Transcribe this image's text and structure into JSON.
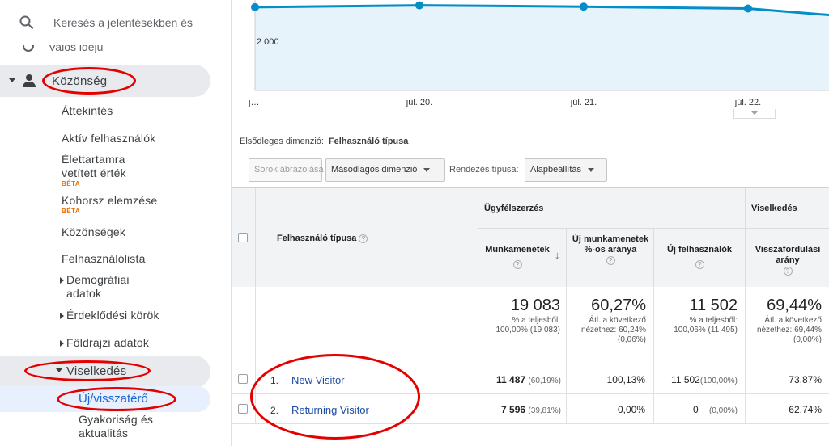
{
  "search": {
    "placeholder": "Keresés a jelentésekben és a"
  },
  "sidebar": {
    "partial_item": "Valós idejű",
    "audience": "Közönség",
    "audience_items": [
      {
        "label": "Áttekintés"
      },
      {
        "label": "Aktív felhasználók"
      },
      {
        "label": "Élettartamra vetített érték",
        "badge": "BÉTA"
      },
      {
        "label": "Kohorsz elemzése",
        "badge": "BÉTA"
      },
      {
        "label": "Közönségek"
      },
      {
        "label": "Felhasználólista"
      },
      {
        "label": "Demográfiai adatok"
      },
      {
        "label": "Érdeklődési körök"
      },
      {
        "label": "Földrajzi adatok"
      }
    ],
    "behavior": "Viselkedés",
    "behavior_items": [
      {
        "label": "Új/visszatérő"
      },
      {
        "label": "Gyakoriság és aktualitás"
      }
    ]
  },
  "chart_data": {
    "type": "area",
    "x": [
      "j…",
      "júl. 20.",
      "júl. 21.",
      "júl. 22."
    ],
    "series": [
      {
        "values": [
          2865,
          2900,
          2875,
          2840
        ]
      }
    ],
    "y_tick": "2 000",
    "colors": {
      "line": "#058dc7",
      "fill": "#e6f3fa"
    }
  },
  "dimension": {
    "label": "Elsődleges dimenzió:",
    "value": "Felhasználó típusa"
  },
  "toolbar": {
    "plot_rows": "Sorok ábrázolása",
    "secondary_dim": "Másodlagos dimenzió",
    "sort_label": "Rendezés típusa:",
    "sort_value": "Alapbeállítás"
  },
  "table": {
    "dim_header": "Felhasználó típusa",
    "group_acq": "Ügyfélszerzés",
    "group_beh": "Viselkedés",
    "cols": {
      "sessions": "Munkamenetek",
      "new_sessions": "Új munkamenetek %-os aránya",
      "new_users": "Új felhasználók",
      "bounce": "Visszafordulási arány"
    },
    "totals": {
      "sessions": "19 083",
      "sessions_sub": "% a teljesből: 100,00% (19 083)",
      "new_sessions": "60,27%",
      "new_sessions_sub": "Átl. a következő nézethez: 60,24% (0,06%)",
      "new_users": "11 502",
      "new_users_sub": "% a teljesből: 100,06% (11 495)",
      "bounce": "69,44%",
      "bounce_sub": "Átl. a következő nézethez: 69,44% (0,00%)"
    },
    "rows": [
      {
        "num": "1.",
        "label": "New Visitor",
        "sessions": "11 487",
        "sessions_pct": "(60,19%)",
        "new_sessions": "100,13%",
        "new_users": "11 502",
        "new_users_pct": "(100,00%)",
        "bounce": "73,87%"
      },
      {
        "num": "2.",
        "label": "Returning Visitor",
        "sessions": "7 596",
        "sessions_pct": "(39,81%)",
        "new_sessions": "0,00%",
        "new_users": "0",
        "new_users_pct": "(0,00%)",
        "bounce": "62,74%"
      }
    ]
  }
}
